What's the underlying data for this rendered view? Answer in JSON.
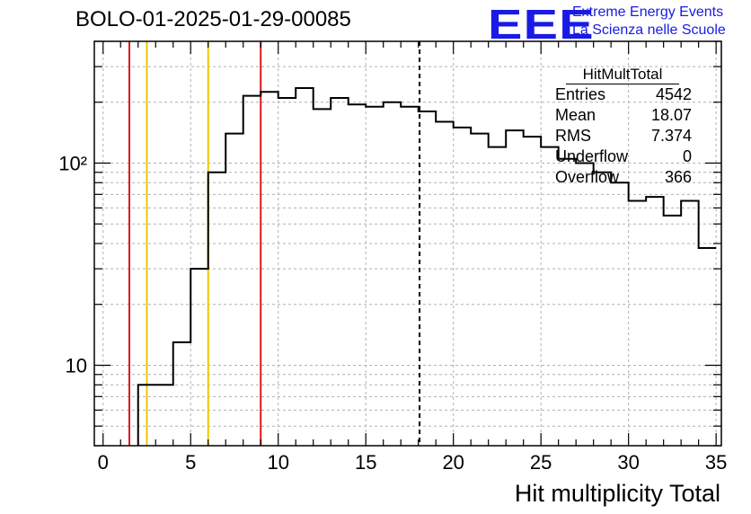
{
  "header": {
    "title": "BOLO-01-2025-01-29-00085",
    "logo_text": "EEE",
    "logo_line1": "Extreme Energy Events",
    "logo_line2": "La Scienza nelle Scuole"
  },
  "stats_box": {
    "title": "HitMultTotal",
    "rows": [
      {
        "label": "Entries",
        "value": "4542"
      },
      {
        "label": "Mean",
        "value": "18.07"
      },
      {
        "label": "RMS",
        "value": "7.374"
      },
      {
        "label": "Underflow",
        "value": "0"
      },
      {
        "label": "Overflow",
        "value": "366"
      }
    ]
  },
  "colors": {
    "histogram": "#000000",
    "red_lines": "#e0161b",
    "yellow_lines": "#f5c400",
    "grid": "#b0b0b0",
    "logo": "#1a1ae6"
  },
  "chart_data": {
    "type": "bar",
    "style": "step-histogram",
    "title": "BOLO-01-2025-01-29-00085",
    "xlabel": "Hit multiplicity Total",
    "ylabel": "",
    "xlim": [
      -0.5,
      35.3
    ],
    "ylim": [
      4,
      400
    ],
    "yscale": "log",
    "grid": true,
    "bin_width": 1,
    "bins": [
      {
        "x": 2.5,
        "value": 8
      },
      {
        "x": 3.5,
        "value": 8
      },
      {
        "x": 4.5,
        "value": 13
      },
      {
        "x": 5.5,
        "value": 30
      },
      {
        "x": 6.5,
        "value": 90
      },
      {
        "x": 7.5,
        "value": 140
      },
      {
        "x": 8.5,
        "value": 215
      },
      {
        "x": 9.5,
        "value": 225
      },
      {
        "x": 10.5,
        "value": 210
      },
      {
        "x": 11.5,
        "value": 235
      },
      {
        "x": 12.5,
        "value": 185
      },
      {
        "x": 13.5,
        "value": 210
      },
      {
        "x": 14.5,
        "value": 195
      },
      {
        "x": 15.5,
        "value": 190
      },
      {
        "x": 16.5,
        "value": 200
      },
      {
        "x": 17.5,
        "value": 190
      },
      {
        "x": 18.5,
        "value": 180
      },
      {
        "x": 19.5,
        "value": 160
      },
      {
        "x": 20.5,
        "value": 150
      },
      {
        "x": 21.5,
        "value": 140
      },
      {
        "x": 22.5,
        "value": 120
      },
      {
        "x": 23.5,
        "value": 145
      },
      {
        "x": 24.5,
        "value": 135
      },
      {
        "x": 25.5,
        "value": 120
      },
      {
        "x": 26.5,
        "value": 105
      },
      {
        "x": 27.5,
        "value": 100
      },
      {
        "x": 28.5,
        "value": 90
      },
      {
        "x": 29.5,
        "value": 80
      },
      {
        "x": 30.5,
        "value": 65
      },
      {
        "x": 31.5,
        "value": 68
      },
      {
        "x": 32.5,
        "value": 55
      },
      {
        "x": 33.5,
        "value": 65
      },
      {
        "x": 34.5,
        "value": 38
      }
    ],
    "x_ticks": [
      0,
      5,
      10,
      15,
      20,
      25,
      30,
      35
    ],
    "x_tick_labels": [
      "0",
      "5",
      "10",
      "15",
      "20",
      "25",
      "30",
      "35"
    ],
    "y_ticks": [
      10,
      100
    ],
    "y_tick_labels": [
      "10",
      "10²"
    ],
    "vertical_lines": [
      {
        "x": 1.5,
        "color": "red",
        "style": "solid"
      },
      {
        "x": 2.5,
        "color": "yellow",
        "style": "solid"
      },
      {
        "x": 6,
        "color": "yellow",
        "style": "solid"
      },
      {
        "x": 9,
        "color": "red",
        "style": "solid"
      },
      {
        "x": 18.07,
        "color": "black",
        "style": "dashed"
      }
    ]
  }
}
